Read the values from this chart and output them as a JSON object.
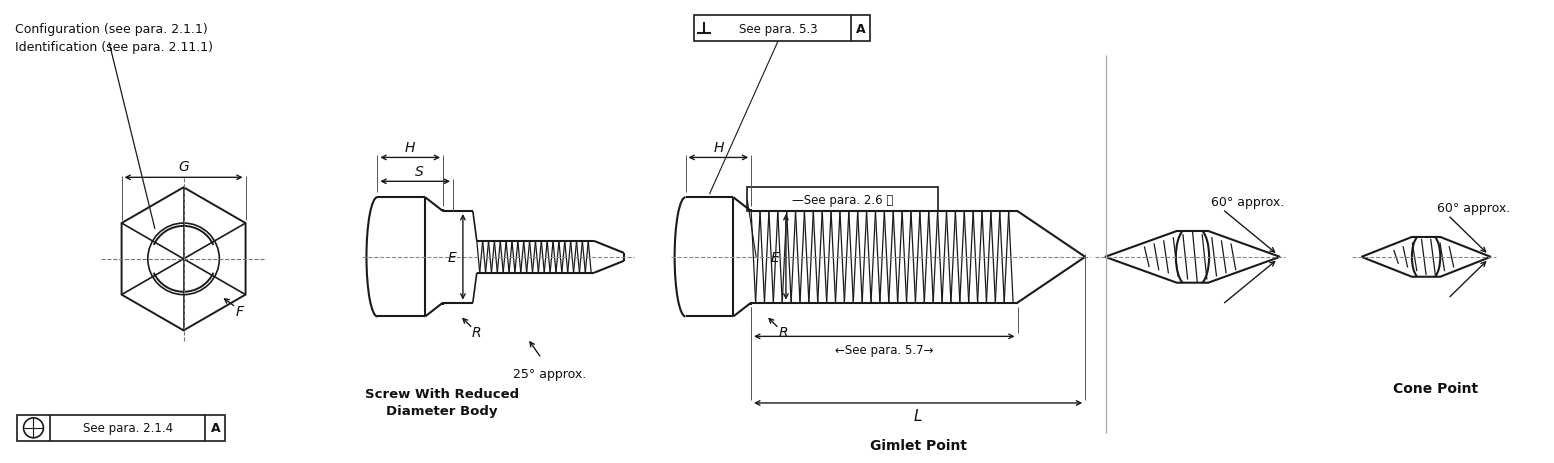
{
  "bg_color": "#ffffff",
  "line_color": "#1a1a1a",
  "text_color": "#111111",
  "labels": {
    "config": "Configuration (see para. 2.1.1)",
    "ident": "Identification (see para. 2.11.1)",
    "G": "G",
    "H": "H",
    "S": "S",
    "E": "E",
    "R": "R",
    "F": "F",
    "L": "L",
    "see_para_214_text": "See para. 2.1.4",
    "A": "A",
    "see_para_53_text": "See para. 5.3",
    "see_para_26": "—See para. 2.6 Ⓜ",
    "see_para_57": "←See para. 5.7→",
    "screw_label1": "Screw With Reduced",
    "screw_label2": "Diameter Body",
    "approx25": "25° approx.",
    "approx60_1": "60° approx.",
    "approx60_2": "60° approx.",
    "gimlet_point": "Gimlet Point",
    "cone_point": "Cone Point"
  }
}
